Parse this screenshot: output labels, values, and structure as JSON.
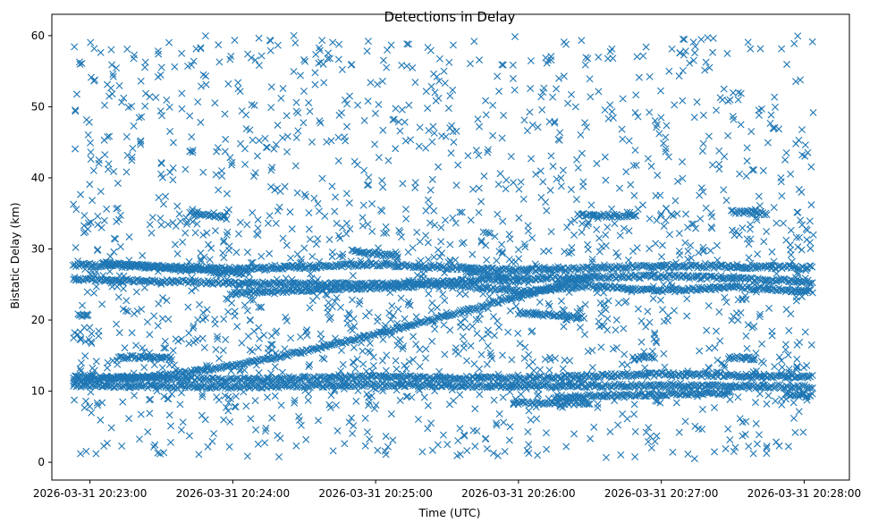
{
  "chart_data": {
    "type": "scatter",
    "title": "Detections in Delay",
    "xlabel": "Time (UTC)",
    "ylabel": "Bistatic Delay (km)",
    "x_type": "time",
    "xlim": [
      "2026-03-31 20:22:44",
      "2026-03-31 20:28:19"
    ],
    "ylim": [
      -2.5,
      63
    ],
    "x_ticks": [
      "2026-03-31 20:23:00",
      "2026-03-31 20:24:00",
      "2026-03-31 20:25:00",
      "2026-03-31 20:26:00",
      "2026-03-31 20:27:00",
      "2026-03-31 20:28:00"
    ],
    "y_ticks": [
      0,
      10,
      20,
      30,
      40,
      50,
      60
    ],
    "marker": "x",
    "marker_color": "#1f77b4",
    "grid": false,
    "legend": "none",
    "data_range": {
      "t_start": "2026-03-31 20:22:53",
      "t_end": "2026-03-31 20:28:04"
    },
    "tracks": [
      {
        "t": [
          "2026-03-31 20:22:53",
          "2026-03-31 20:23:30",
          "2026-03-31 20:24:00",
          "2026-03-31 20:24:30",
          "2026-03-31 20:24:58",
          "2026-03-31 20:25:30",
          "2026-03-31 20:26:00",
          "2026-03-31 20:26:30"
        ],
        "y": [
          11.5,
          12.2,
          13.5,
          15.6,
          17.8,
          20.6,
          23.4,
          26.0
        ]
      },
      {
        "t": [
          "2026-03-31 20:22:53",
          "2026-03-31 20:24:00",
          "2026-03-31 20:25:00",
          "2026-03-31 20:26:00",
          "2026-03-31 20:27:00",
          "2026-03-31 20:28:04"
        ],
        "y": [
          12.0,
          11.6,
          12.0,
          11.8,
          12.4,
          12.0
        ]
      },
      {
        "t": [
          "2026-03-31 20:22:53",
          "2026-03-31 20:24:00",
          "2026-03-31 20:25:00",
          "2026-03-31 20:26:00",
          "2026-03-31 20:27:00",
          "2026-03-31 20:28:04"
        ],
        "y": [
          10.8,
          10.6,
          10.9,
          10.7,
          10.8,
          10.6
        ]
      },
      {
        "t": [
          "2026-03-31 20:22:53",
          "2026-03-31 20:24:00",
          "2026-03-31 20:25:00",
          "2026-03-31 20:26:00",
          "2026-03-31 20:27:00",
          "2026-03-31 20:28:04"
        ],
        "y": [
          27.8,
          27.2,
          27.8,
          27.0,
          27.6,
          27.4
        ]
      },
      {
        "t": [
          "2026-03-31 20:22:53",
          "2026-03-31 20:24:00",
          "2026-03-31 20:25:00",
          "2026-03-31 20:26:00",
          "2026-03-31 20:27:00",
          "2026-03-31 20:28:04"
        ],
        "y": [
          25.8,
          25.2,
          25.0,
          25.8,
          26.2,
          25.4
        ]
      },
      {
        "t": [
          "2026-03-31 20:24:00",
          "2026-03-31 20:24:30",
          "2026-03-31 20:25:00",
          "2026-03-31 20:25:30",
          "2026-03-31 20:26:00",
          "2026-03-31 20:26:30",
          "2026-03-31 20:27:00",
          "2026-03-31 20:27:30",
          "2026-03-31 20:28:04"
        ],
        "y": [
          23.8,
          24.2,
          24.6,
          25.0,
          24.0,
          24.8,
          24.2,
          24.6,
          24.0
        ]
      },
      {
        "t": [
          "2026-03-31 20:23:05",
          "2026-03-31 20:23:40",
          "2026-03-31 20:24:05"
        ],
        "y": [
          28.0,
          27.2,
          26.5
        ]
      },
      {
        "t": [
          "2026-03-31 20:24:50",
          "2026-03-31 20:25:10"
        ],
        "y": [
          29.8,
          29.0
        ]
      },
      {
        "t": [
          "2026-03-31 20:25:38",
          "2026-03-31 20:25:55"
        ],
        "y": [
          26.8,
          26.0
        ]
      },
      {
        "t": [
          "2026-03-31 20:26:25",
          "2026-03-31 20:26:50"
        ],
        "y": [
          34.8,
          34.6
        ]
      },
      {
        "t": [
          "2026-03-31 20:26:00",
          "2026-03-31 20:26:28"
        ],
        "y": [
          21.0,
          20.4
        ]
      },
      {
        "t": [
          "2026-03-31 20:22:55",
          "2026-03-31 20:23:00"
        ],
        "y": [
          20.8,
          20.6
        ]
      },
      {
        "t": [
          "2026-03-31 20:23:12",
          "2026-03-31 20:23:35"
        ],
        "y": [
          14.8,
          14.6
        ]
      },
      {
        "t": [
          "2026-03-31 20:23:42",
          "2026-03-31 20:23:58"
        ],
        "y": [
          35.0,
          34.4
        ]
      },
      {
        "t": [
          "2026-03-31 20:25:58",
          "2026-03-31 20:26:30"
        ],
        "y": [
          8.4,
          8.2
        ]
      },
      {
        "t": [
          "2026-03-31 20:26:15",
          "2026-03-31 20:27:30"
        ],
        "y": [
          9.2,
          9.8
        ]
      },
      {
        "t": [
          "2026-03-31 20:26:48",
          "2026-03-31 20:26:58"
        ],
        "y": [
          14.6,
          14.8
        ]
      },
      {
        "t": [
          "2026-03-31 20:27:30",
          "2026-03-31 20:27:45"
        ],
        "y": [
          35.2,
          35.0
        ]
      },
      {
        "t": [
          "2026-03-31 20:27:28",
          "2026-03-31 20:27:40"
        ],
        "y": [
          14.8,
          14.6
        ]
      },
      {
        "t": [
          "2026-03-31 20:27:52",
          "2026-03-31 20:28:04"
        ],
        "y": [
          9.6,
          9.4
        ]
      }
    ],
    "noise_ranges": {
      "y_min": 0.5,
      "y_max": 60
    }
  }
}
